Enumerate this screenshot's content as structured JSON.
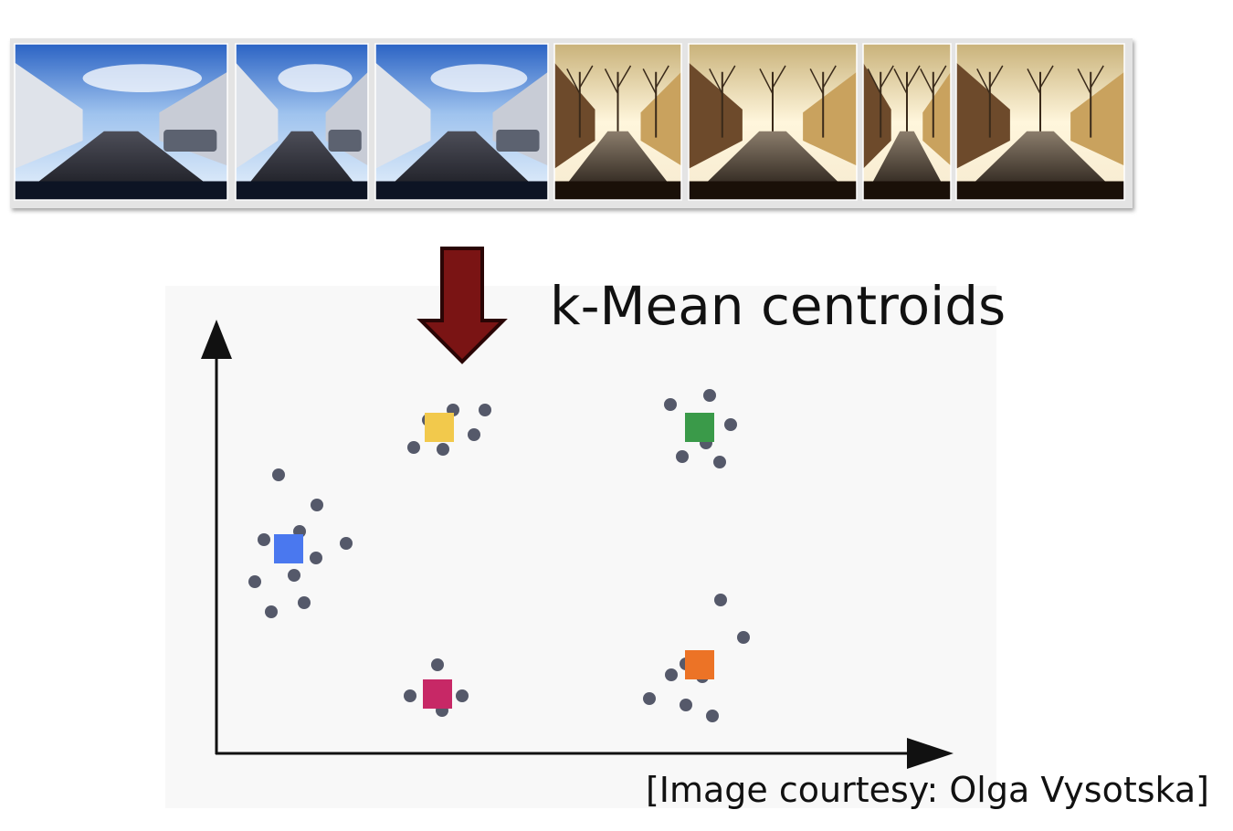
{
  "heading": "k-Mean centroids",
  "credit": "[Image courtesy: Olga Vysotska]",
  "colors": {
    "arrow_fill": "#7a1414",
    "arrow_stroke": "#2a0505",
    "point": "#55596a",
    "centroid_blue": "#4a78ef",
    "centroid_yellow": "#f2c94c",
    "centroid_green": "#3a9a49",
    "centroid_magenta": "#c72866",
    "centroid_orange": "#ec7326",
    "panel": "#f8f8f8",
    "axis": "#111111"
  },
  "photos": [
    {
      "name": "street-photo-1",
      "scene": "summer"
    },
    {
      "name": "street-photo-2",
      "scene": "summer"
    },
    {
      "name": "street-photo-3",
      "scene": "summer"
    },
    {
      "name": "street-photo-4",
      "scene": "winter"
    },
    {
      "name": "street-photo-5",
      "scene": "winter"
    },
    {
      "name": "street-photo-6",
      "scene": "winter"
    },
    {
      "name": "street-photo-7",
      "scene": "winter"
    }
  ],
  "clusters": [
    {
      "name": "blue",
      "centroid": [
        0.3,
        0.42
      ]
    },
    {
      "name": "yellow",
      "centroid": [
        0.85,
        0.8
      ]
    },
    {
      "name": "green",
      "centroid": [
        1.75,
        0.79
      ]
    },
    {
      "name": "magenta",
      "centroid": [
        0.85,
        0.1
      ]
    },
    {
      "name": "orange",
      "centroid": [
        1.75,
        0.14
      ]
    }
  ]
}
